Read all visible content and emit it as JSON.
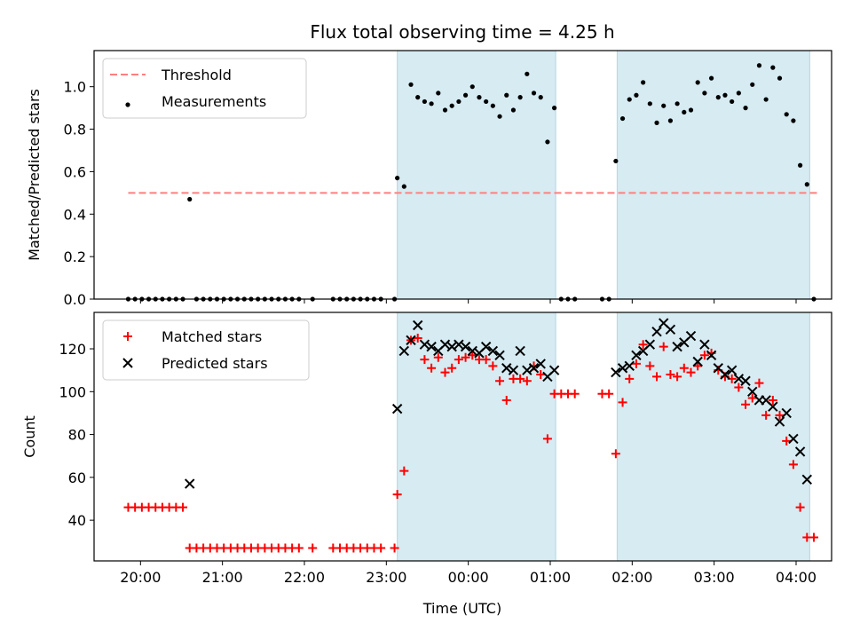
{
  "title": "Flux total observing time = 4.25 h",
  "xlabel": "Time (UTC)",
  "colors": {
    "threshold": "#ff7f7f",
    "measurement": "#000000",
    "matched": "#ff0000",
    "predicted": "#000000",
    "shade": "#add8e6"
  },
  "chart_data": [
    {
      "type": "scatter",
      "panel": "top",
      "ylabel": "Matched/Predicted stars",
      "xlim": [
        "19:26",
        "04:26"
      ],
      "ylim": [
        0,
        1.17
      ],
      "yticks": [
        0.0,
        0.2,
        0.4,
        0.6,
        0.8,
        1.0
      ],
      "ytick_labels": [
        "0.0",
        "0.2",
        "0.4",
        "0.6",
        "0.8",
        "1.0"
      ],
      "xticks": [
        "20:00",
        "21:00",
        "22:00",
        "23:00",
        "00:00",
        "01:00",
        "02:00",
        "03:00",
        "04:00"
      ],
      "legend": {
        "position": "top-left",
        "entries": [
          {
            "label": "Threshold"
          },
          {
            "label": "Measurements"
          }
        ]
      },
      "shaded_intervals": [
        [
          "23:08",
          "01:04"
        ],
        [
          "01:49",
          "04:10"
        ]
      ],
      "threshold": {
        "value": 0.5,
        "x_range": [
          "19:51",
          "04:17"
        ]
      },
      "series": [
        {
          "name": "Measurements",
          "marker": "dot",
          "points": [
            [
              "19:51",
              0
            ],
            [
              "19:56",
              0
            ],
            [
              "20:01",
              0
            ],
            [
              "20:06",
              0
            ],
            [
              "20:11",
              0
            ],
            [
              "20:16",
              0
            ],
            [
              "20:21",
              0
            ],
            [
              "20:26",
              0
            ],
            [
              "20:31",
              0
            ],
            [
              "20:36",
              0.47
            ],
            [
              "20:41",
              0
            ],
            [
              "20:46",
              0
            ],
            [
              "20:51",
              0
            ],
            [
              "20:56",
              0
            ],
            [
              "21:01",
              0
            ],
            [
              "21:06",
              0
            ],
            [
              "21:11",
              0
            ],
            [
              "21:16",
              0
            ],
            [
              "21:21",
              0
            ],
            [
              "21:26",
              0
            ],
            [
              "21:31",
              0
            ],
            [
              "21:36",
              0
            ],
            [
              "21:41",
              0
            ],
            [
              "21:46",
              0
            ],
            [
              "21:51",
              0
            ],
            [
              "21:56",
              0
            ],
            [
              "22:06",
              0
            ],
            [
              "22:21",
              0
            ],
            [
              "22:26",
              0
            ],
            [
              "22:31",
              0
            ],
            [
              "22:36",
              0
            ],
            [
              "22:41",
              0
            ],
            [
              "22:46",
              0
            ],
            [
              "22:51",
              0
            ],
            [
              "22:56",
              0
            ],
            [
              "23:06",
              0
            ],
            [
              "23:08",
              0.57
            ],
            [
              "23:13",
              0.53
            ],
            [
              "23:18",
              1.01
            ],
            [
              "23:23",
              0.95
            ],
            [
              "23:28",
              0.93
            ],
            [
              "23:33",
              0.92
            ],
            [
              "23:38",
              0.97
            ],
            [
              "23:43",
              0.89
            ],
            [
              "23:48",
              0.91
            ],
            [
              "23:53",
              0.93
            ],
            [
              "23:58",
              0.96
            ],
            [
              "00:03",
              1.0
            ],
            [
              "00:08",
              0.95
            ],
            [
              "00:13",
              0.93
            ],
            [
              "00:18",
              0.91
            ],
            [
              "00:23",
              0.86
            ],
            [
              "00:28",
              0.96
            ],
            [
              "00:33",
              0.89
            ],
            [
              "00:38",
              0.95
            ],
            [
              "00:43",
              1.06
            ],
            [
              "00:48",
              0.97
            ],
            [
              "00:53",
              0.95
            ],
            [
              "00:58",
              0.74
            ],
            [
              "01:03",
              0.9
            ],
            [
              "01:08",
              0
            ],
            [
              "01:13",
              0
            ],
            [
              "01:18",
              0
            ],
            [
              "01:38",
              0
            ],
            [
              "01:43",
              0
            ],
            [
              "01:48",
              0.65
            ],
            [
              "01:53",
              0.85
            ],
            [
              "01:58",
              0.94
            ],
            [
              "02:03",
              0.96
            ],
            [
              "02:08",
              1.02
            ],
            [
              "02:13",
              0.92
            ],
            [
              "02:18",
              0.83
            ],
            [
              "02:23",
              0.91
            ],
            [
              "02:28",
              0.84
            ],
            [
              "02:33",
              0.92
            ],
            [
              "02:38",
              0.88
            ],
            [
              "02:43",
              0.89
            ],
            [
              "02:48",
              1.02
            ],
            [
              "02:53",
              0.97
            ],
            [
              "02:58",
              1.04
            ],
            [
              "03:03",
              0.95
            ],
            [
              "03:08",
              0.96
            ],
            [
              "03:13",
              0.93
            ],
            [
              "03:18",
              0.97
            ],
            [
              "03:23",
              0.9
            ],
            [
              "03:28",
              1.01
            ],
            [
              "03:33",
              1.1
            ],
            [
              "03:38",
              0.94
            ],
            [
              "03:43",
              1.09
            ],
            [
              "03:48",
              1.04
            ],
            [
              "03:53",
              0.87
            ],
            [
              "03:58",
              0.84
            ],
            [
              "04:03",
              0.63
            ],
            [
              "04:08",
              0.54
            ],
            [
              "04:13",
              0
            ]
          ]
        }
      ]
    },
    {
      "type": "scatter",
      "panel": "bottom",
      "ylabel": "Count",
      "xlabel": "Time (UTC)",
      "xlim": [
        "19:26",
        "04:26"
      ],
      "ylim": [
        21,
        137
      ],
      "yticks": [
        40,
        60,
        80,
        100,
        120
      ],
      "ytick_labels": [
        "40",
        "60",
        "80",
        "100",
        "120"
      ],
      "xticks": [
        "20:00",
        "21:00",
        "22:00",
        "23:00",
        "00:00",
        "01:00",
        "02:00",
        "03:00",
        "04:00"
      ],
      "legend": {
        "position": "top-left",
        "entries": [
          {
            "label": "Matched stars"
          },
          {
            "label": "Predicted stars"
          }
        ]
      },
      "shaded_intervals": [
        [
          "23:08",
          "01:04"
        ],
        [
          "01:49",
          "04:10"
        ]
      ],
      "series": [
        {
          "name": "Matched stars",
          "marker": "plus",
          "points": [
            [
              "19:51",
              46
            ],
            [
              "19:56",
              46
            ],
            [
              "20:01",
              46
            ],
            [
              "20:06",
              46
            ],
            [
              "20:11",
              46
            ],
            [
              "20:16",
              46
            ],
            [
              "20:21",
              46
            ],
            [
              "20:26",
              46
            ],
            [
              "20:31",
              46
            ],
            [
              "20:36",
              27
            ],
            [
              "20:41",
              27
            ],
            [
              "20:46",
              27
            ],
            [
              "20:51",
              27
            ],
            [
              "20:56",
              27
            ],
            [
              "21:01",
              27
            ],
            [
              "21:06",
              27
            ],
            [
              "21:11",
              27
            ],
            [
              "21:16",
              27
            ],
            [
              "21:21",
              27
            ],
            [
              "21:26",
              27
            ],
            [
              "21:31",
              27
            ],
            [
              "21:36",
              27
            ],
            [
              "21:41",
              27
            ],
            [
              "21:46",
              27
            ],
            [
              "21:51",
              27
            ],
            [
              "21:56",
              27
            ],
            [
              "22:06",
              27
            ],
            [
              "22:21",
              27
            ],
            [
              "22:26",
              27
            ],
            [
              "22:31",
              27
            ],
            [
              "22:36",
              27
            ],
            [
              "22:41",
              27
            ],
            [
              "22:46",
              27
            ],
            [
              "22:51",
              27
            ],
            [
              "22:56",
              27
            ],
            [
              "23:06",
              27
            ],
            [
              "23:08",
              52
            ],
            [
              "23:13",
              63
            ],
            [
              "23:18",
              124
            ],
            [
              "23:23",
              125
            ],
            [
              "23:28",
              115
            ],
            [
              "23:33",
              111
            ],
            [
              "23:38",
              116
            ],
            [
              "23:43",
              109
            ],
            [
              "23:48",
              111
            ],
            [
              "23:53",
              115
            ],
            [
              "23:58",
              116
            ],
            [
              "00:03",
              117
            ],
            [
              "00:08",
              115
            ],
            [
              "00:13",
              115
            ],
            [
              "00:18",
              112
            ],
            [
              "00:23",
              105
            ],
            [
              "00:28",
              96
            ],
            [
              "00:33",
              106
            ],
            [
              "00:38",
              106
            ],
            [
              "00:43",
              105
            ],
            [
              "00:48",
              112
            ],
            [
              "00:53",
              108
            ],
            [
              "00:58",
              78
            ],
            [
              "01:03",
              99
            ],
            [
              "01:08",
              99
            ],
            [
              "01:13",
              99
            ],
            [
              "01:18",
              99
            ],
            [
              "01:38",
              99
            ],
            [
              "01:43",
              99
            ],
            [
              "01:48",
              71
            ],
            [
              "01:53",
              95
            ],
            [
              "01:58",
              106
            ],
            [
              "02:03",
              113
            ],
            [
              "02:08",
              122
            ],
            [
              "02:13",
              112
            ],
            [
              "02:18",
              107
            ],
            [
              "02:23",
              121
            ],
            [
              "02:28",
              108
            ],
            [
              "02:33",
              107
            ],
            [
              "02:38",
              111
            ],
            [
              "02:43",
              109
            ],
            [
              "02:48",
              112
            ],
            [
              "02:53",
              117
            ],
            [
              "02:58",
              118
            ],
            [
              "03:03",
              110
            ],
            [
              "03:08",
              107
            ],
            [
              "03:13",
              106
            ],
            [
              "03:18",
              102
            ],
            [
              "03:23",
              94
            ],
            [
              "03:28",
              97
            ],
            [
              "03:33",
              104
            ],
            [
              "03:38",
              89
            ],
            [
              "03:43",
              96
            ],
            [
              "03:48",
              89
            ],
            [
              "03:53",
              77
            ],
            [
              "03:58",
              66
            ],
            [
              "04:03",
              46
            ],
            [
              "04:08",
              32
            ],
            [
              "04:13",
              32
            ]
          ]
        },
        {
          "name": "Predicted stars",
          "marker": "x",
          "points": [
            [
              "20:36",
              57
            ],
            [
              "23:08",
              92
            ],
            [
              "23:13",
              119
            ],
            [
              "23:18",
              124
            ],
            [
              "23:23",
              131
            ],
            [
              "23:28",
              122
            ],
            [
              "23:33",
              121
            ],
            [
              "23:38",
              119
            ],
            [
              "23:43",
              122
            ],
            [
              "23:48",
              121
            ],
            [
              "23:53",
              122
            ],
            [
              "23:58",
              121
            ],
            [
              "00:03",
              119
            ],
            [
              "00:08",
              118
            ],
            [
              "00:13",
              121
            ],
            [
              "00:18",
              119
            ],
            [
              "00:23",
              117
            ],
            [
              "00:28",
              111
            ],
            [
              "00:33",
              110
            ],
            [
              "00:38",
              119
            ],
            [
              "00:43",
              110
            ],
            [
              "00:48",
              111
            ],
            [
              "00:53",
              113
            ],
            [
              "00:58",
              107
            ],
            [
              "01:03",
              110
            ],
            [
              "01:48",
              109
            ],
            [
              "01:53",
              111
            ],
            [
              "01:58",
              112
            ],
            [
              "02:03",
              117
            ],
            [
              "02:08",
              119
            ],
            [
              "02:13",
              122
            ],
            [
              "02:18",
              128
            ],
            [
              "02:23",
              132
            ],
            [
              "02:28",
              129
            ],
            [
              "02:33",
              121
            ],
            [
              "02:38",
              123
            ],
            [
              "02:43",
              126
            ],
            [
              "02:48",
              114
            ],
            [
              "02:53",
              122
            ],
            [
              "02:58",
              117
            ],
            [
              "03:03",
              111
            ],
            [
              "03:08",
              108
            ],
            [
              "03:13",
              110
            ],
            [
              "03:18",
              106
            ],
            [
              "03:23",
              105
            ],
            [
              "03:28",
              100
            ],
            [
              "03:33",
              96
            ],
            [
              "03:38",
              96
            ],
            [
              "03:43",
              93
            ],
            [
              "03:48",
              86
            ],
            [
              "03:53",
              90
            ],
            [
              "03:58",
              78
            ],
            [
              "04:03",
              72
            ],
            [
              "04:08",
              59
            ]
          ]
        }
      ]
    }
  ]
}
